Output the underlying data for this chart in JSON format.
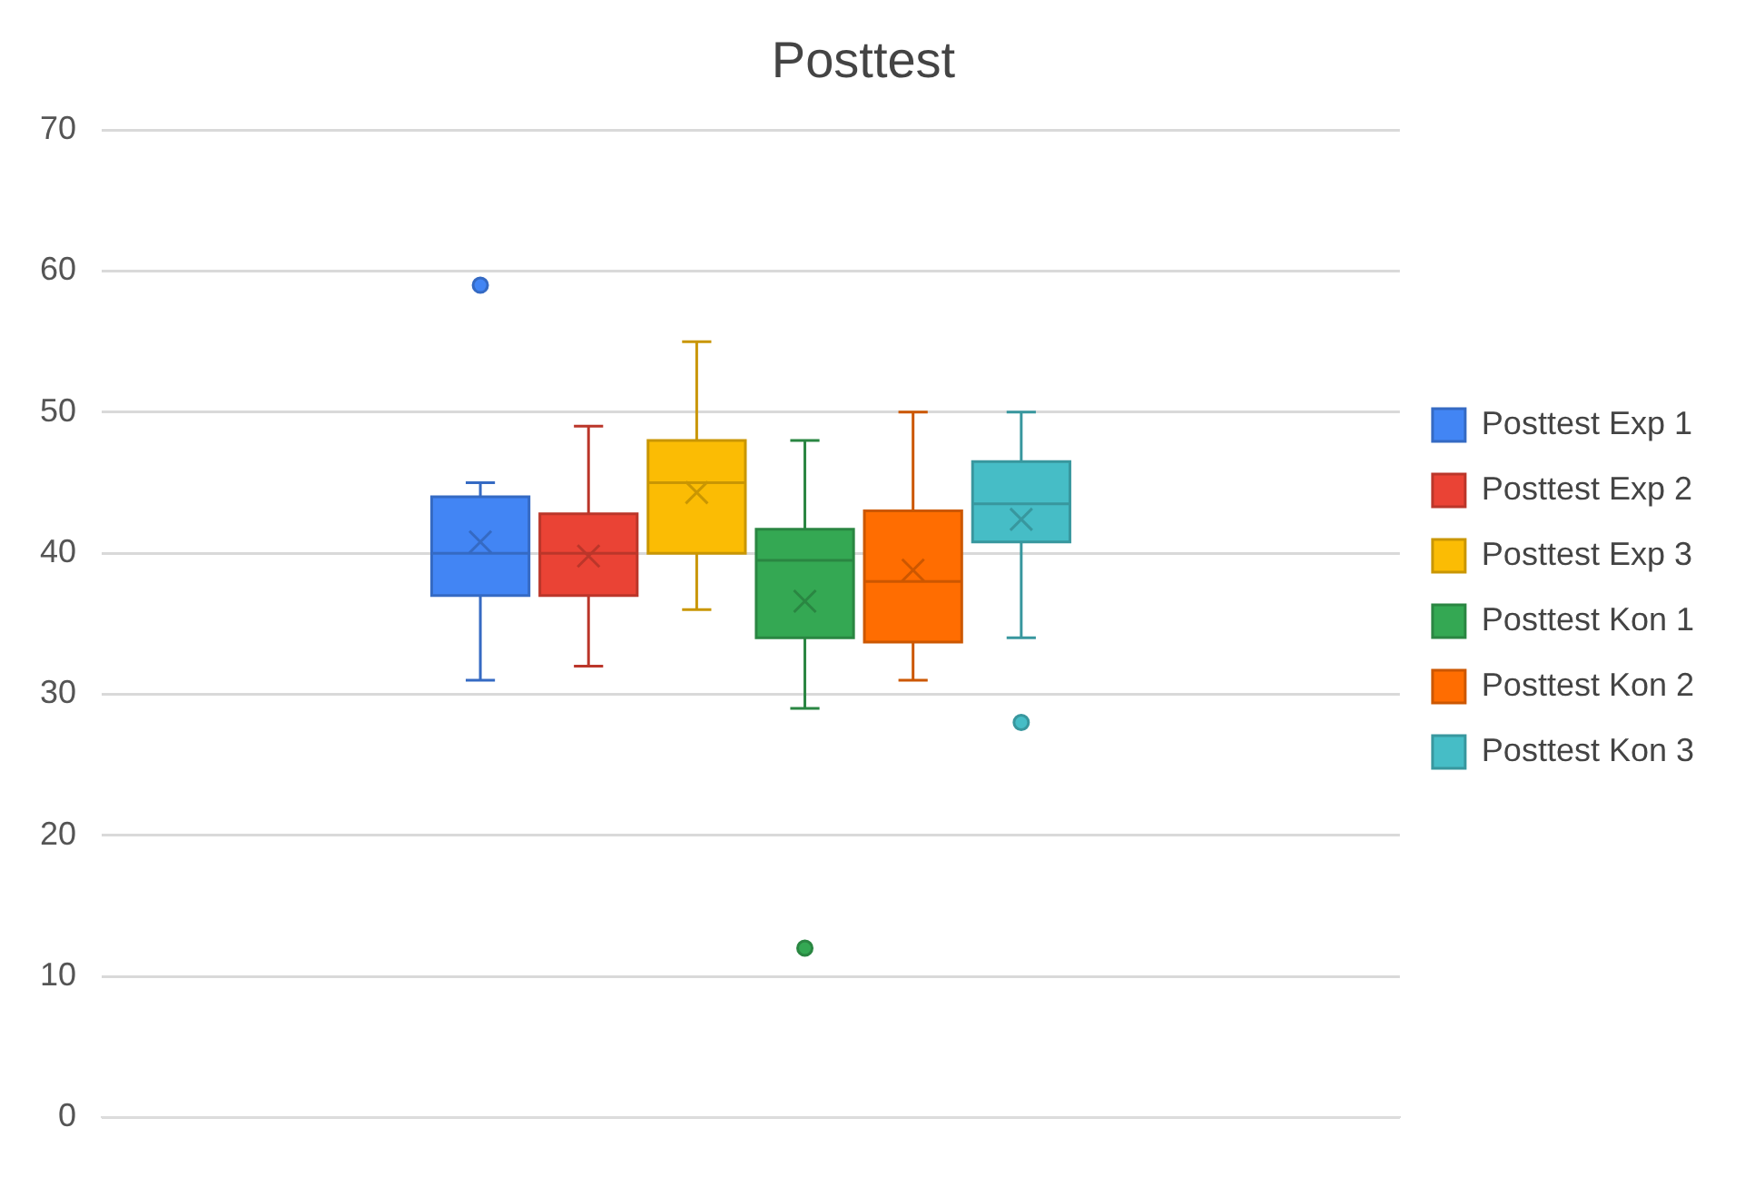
{
  "chart_data": {
    "type": "box",
    "title": "Posttest",
    "categories": [
      null
    ],
    "series": [
      {
        "name": "Posttest Exp 1",
        "color": "#4285f4",
        "boxes": [
          {
            "low": 31,
            "q1": 37,
            "median": 40,
            "q3": 44,
            "high": 45,
            "mean": 40.8,
            "outliers": [
              59
            ]
          }
        ]
      },
      {
        "name": "Posttest Exp 2",
        "color": "#ea4335",
        "boxes": [
          {
            "low": 32,
            "q1": 37,
            "median": 40,
            "q3": 42.8,
            "high": 49,
            "mean": 39.8
          }
        ]
      },
      {
        "name": "Posttest Exp 3",
        "color": "#fbbc04",
        "boxes": [
          {
            "low": 36,
            "q1": 40,
            "median": 45,
            "q3": 48,
            "high": 55,
            "mean": 44.3
          }
        ]
      },
      {
        "name": "Posttest Kon 1",
        "color": "#34a853",
        "boxes": [
          {
            "low": 29,
            "q1": 34,
            "median": 39.5,
            "q3": 41.7,
            "high": 48,
            "mean": 36.6,
            "outliers": [
              12
            ]
          }
        ]
      },
      {
        "name": "Posttest Kon 2",
        "color": "#ff6d01",
        "boxes": [
          {
            "low": 31,
            "q1": 33.7,
            "median": 38,
            "q3": 43,
            "high": 50,
            "mean": 38.8
          }
        ]
      },
      {
        "name": "Posttest Kon 3",
        "color": "#46bdc6",
        "boxes": [
          {
            "low": 34,
            "q1": 40.8,
            "median": 43.5,
            "q3": 46.5,
            "high": 50,
            "mean": 42.4,
            "outliers": [
              28
            ]
          }
        ]
      }
    ],
    "ylim": [
      0,
      70
    ],
    "yticks": [
      0,
      10,
      20,
      30,
      40,
      50,
      60,
      70
    ],
    "grid": "y",
    "legend": "right"
  }
}
